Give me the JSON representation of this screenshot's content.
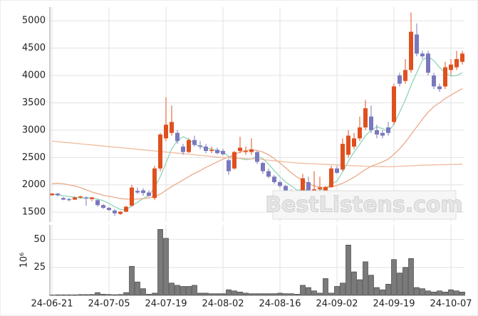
{
  "chart_data": [
    {
      "type": "candlestick",
      "categories": [
        "24-06-21",
        null,
        null,
        null,
        null,
        null,
        null,
        null,
        null,
        null,
        "24-07-05",
        null,
        null,
        null,
        null,
        null,
        null,
        null,
        null,
        null,
        "24-07-19",
        null,
        null,
        null,
        null,
        null,
        null,
        null,
        null,
        null,
        "24-08-02",
        null,
        null,
        null,
        null,
        null,
        null,
        null,
        null,
        null,
        "24-08-16",
        null,
        null,
        null,
        null,
        null,
        null,
        null,
        null,
        null,
        "24-09-02",
        null,
        null,
        null,
        null,
        null,
        null,
        null,
        null,
        null,
        "24-09-19",
        null,
        null,
        null,
        null,
        null,
        null,
        null,
        null,
        null,
        "24-10-07",
        null,
        null
      ],
      "open": [
        1810,
        1840,
        1760,
        1740,
        1730,
        1770,
        1770,
        1740,
        1720,
        1630,
        1580,
        1530,
        1470,
        1510,
        1620,
        1890,
        1900,
        1860,
        1760,
        2300,
        2850,
        2950,
        2950,
        2700,
        2600,
        2820,
        2720,
        2700,
        2620,
        2640,
        2620,
        2450,
        2300,
        2620,
        2600,
        2600,
        2600,
        2400,
        2250,
        2150,
        2050,
        1980,
        1880,
        1830,
        1760,
        2050,
        1900,
        1920,
        1880,
        1960,
        2300,
        2280,
        2550,
        2700,
        2850,
        3050,
        3250,
        3000,
        2950,
        3050,
        3150,
        4000,
        3900,
        4100,
        4750,
        4400,
        4400,
        4000,
        3800,
        3800,
        4100,
        4150,
        4250
      ],
      "high": [
        1850,
        1850,
        1780,
        1760,
        1790,
        1800,
        1790,
        1780,
        1740,
        1650,
        1600,
        1560,
        1520,
        1620,
        2000,
        1950,
        1940,
        1900,
        2350,
        2950,
        3600,
        3450,
        3000,
        2750,
        2850,
        2900,
        2800,
        2750,
        2700,
        2680,
        2660,
        2480,
        2620,
        2880,
        2700,
        2850,
        2620,
        2420,
        2300,
        2180,
        2080,
        2000,
        1920,
        1850,
        2200,
        2150,
        2250,
        2150,
        1980,
        2350,
        2350,
        2850,
        3000,
        2950,
        3250,
        3550,
        3450,
        3100,
        3000,
        3150,
        3850,
        4050,
        4300,
        5150,
        4950,
        4450,
        4450,
        4050,
        3850,
        4250,
        4300,
        4450,
        4450
      ],
      "low": [
        1800,
        1790,
        1720,
        1700,
        1720,
        1750,
        1620,
        1700,
        1600,
        1560,
        1520,
        1430,
        1450,
        1500,
        1600,
        1830,
        1800,
        1780,
        1720,
        2250,
        2800,
        2900,
        2750,
        2550,
        2580,
        2700,
        2650,
        2580,
        2580,
        2560,
        2540,
        2180,
        2280,
        2580,
        2550,
        2550,
        2380,
        2200,
        2120,
        2020,
        1950,
        1850,
        1780,
        1760,
        1740,
        1880,
        1880,
        1880,
        1860,
        1950,
        2200,
        2250,
        2500,
        2650,
        2800,
        3000,
        2950,
        2850,
        2850,
        2900,
        3100,
        3800,
        3850,
        4050,
        4350,
        4300,
        4000,
        3750,
        3700,
        3750,
        4000,
        4100,
        4200
      ],
      "close": [
        1840,
        1810,
        1730,
        1720,
        1770,
        1790,
        1750,
        1770,
        1630,
        1580,
        1540,
        1480,
        1510,
        1600,
        1950,
        1860,
        1850,
        1800,
        2300,
        2920,
        3100,
        3150,
        2800,
        2600,
        2820,
        2730,
        2700,
        2620,
        2640,
        2580,
        2560,
        2250,
        2600,
        2680,
        2620,
        2650,
        2420,
        2250,
        2150,
        2050,
        1980,
        1880,
        1820,
        1780,
        2120,
        1900,
        1920,
        1950,
        1960,
        2300,
        2220,
        2750,
        2900,
        2850,
        3050,
        3400,
        3000,
        2920,
        2900,
        2950,
        3800,
        3850,
        4100,
        4800,
        4400,
        4350,
        4050,
        3800,
        3750,
        4150,
        4200,
        4300,
        4400
      ],
      "up_color": "#e0501e",
      "down_color": "#7a78bd",
      "series": [
        {
          "color": "#8fd4b8",
          "values": [
            1830,
            1820,
            1800,
            1790,
            1770,
            1760,
            1760,
            1760,
            1740,
            1710,
            1660,
            1600,
            1550,
            1540,
            1620,
            1680,
            1750,
            1810,
            1950,
            2150,
            2400,
            2660,
            2810,
            2880,
            2830,
            2750,
            2700,
            2680,
            2650,
            2630,
            2600,
            2520,
            2500,
            2480,
            2460,
            2470,
            2520,
            2480,
            2380,
            2260,
            2150,
            2050,
            1980,
            1900,
            1920,
            1900,
            1880,
            1900,
            1940,
            2010,
            2070,
            2240,
            2430,
            2600,
            2740,
            2900,
            3000,
            3060,
            3030,
            2970,
            3110,
            3330,
            3550,
            3820,
            4050,
            4280,
            4350,
            4270,
            4150,
            4040,
            3990,
            4000,
            4050
          ]
        },
        {
          "color": "#eaa98a",
          "values": [
            2020,
            2030,
            2020,
            2000,
            1980,
            1950,
            1910,
            1870,
            1840,
            1810,
            1790,
            1770,
            1750,
            1740,
            1740,
            1740,
            1750,
            1760,
            1790,
            1830,
            1900,
            1970,
            2030,
            2090,
            2150,
            2210,
            2260,
            2320,
            2370,
            2420,
            2470,
            2510,
            2560,
            2600,
            2630,
            2640,
            2630,
            2600,
            2550,
            2480,
            2400,
            2310,
            2220,
            2140,
            2080,
            2020,
            1980,
            1960,
            1950,
            1960,
            1990,
            2030,
            2080,
            2140,
            2210,
            2280,
            2340,
            2380,
            2420,
            2470,
            2560,
            2660,
            2780,
            2920,
            3060,
            3200,
            3330,
            3430,
            3500,
            3580,
            3640,
            3700,
            3760
          ]
        },
        {
          "color": "#f0bb9c",
          "values": [
            2800,
            2790,
            2780,
            2770,
            2760,
            2750,
            2740,
            2730,
            2720,
            2710,
            2700,
            2690,
            2680,
            2670,
            2660,
            2650,
            2640,
            2630,
            2620,
            2610,
            2600,
            2590,
            2580,
            2570,
            2560,
            2550,
            2540,
            2530,
            2520,
            2510,
            2500,
            2495,
            2490,
            2485,
            2480,
            2475,
            2470,
            2460,
            2450,
            2440,
            2430,
            2420,
            2410,
            2400,
            2395,
            2390,
            2385,
            2380,
            2375,
            2370,
            2365,
            2360,
            2355,
            2350,
            2345,
            2340,
            2338,
            2336,
            2334,
            2332,
            2335,
            2340,
            2345,
            2350,
            2355,
            2360,
            2362,
            2365,
            2368,
            2370,
            2372,
            2375,
            2380
          ]
        }
      ],
      "ylim": [
        1320,
        5250
      ],
      "yticks": [
        1500,
        2000,
        2500,
        3000,
        3500,
        4000,
        4500,
        5000
      ],
      "grid": true,
      "watermark": "BestListens.com"
    },
    {
      "type": "bar",
      "values": [
        0.3,
        0.5,
        0.5,
        0.5,
        0.5,
        0.7,
        0.7,
        0.8,
        2.5,
        1,
        0.8,
        0.6,
        0.8,
        2.5,
        26,
        12,
        6,
        1,
        2,
        59,
        51,
        11,
        9,
        8,
        8,
        9,
        2,
        2,
        1.5,
        1.5,
        1.5,
        5,
        4,
        3,
        2,
        1.5,
        1.5,
        1.5,
        1.5,
        1.5,
        2,
        1.5,
        1.5,
        1,
        9,
        7,
        4,
        2,
        15,
        2,
        8,
        11,
        45,
        21,
        14,
        30,
        18,
        7,
        5,
        10,
        32,
        20,
        25,
        33,
        7,
        6,
        4,
        3,
        4,
        3,
        5,
        4,
        3
      ],
      "color": "#7a7a7a",
      "ylim": [
        0,
        63
      ],
      "yticks": [
        25,
        50
      ],
      "ylabel": "10⁶",
      "grid": true
    }
  ]
}
